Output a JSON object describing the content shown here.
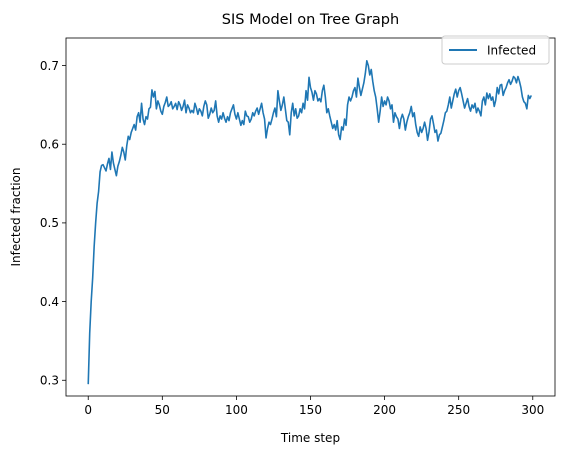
{
  "chart_data": {
    "type": "line",
    "title": "SIS Model on Tree Graph",
    "xlabel": "Time step",
    "ylabel": "Infected fraction",
    "xlim": [
      -15,
      315
    ],
    "ylim": [
      0.28,
      0.735
    ],
    "xticks": [
      0,
      50,
      100,
      150,
      200,
      250,
      300
    ],
    "yticks": [
      0.3,
      0.4,
      0.5,
      0.6,
      0.7
    ],
    "grid": false,
    "legend_position": "top-right",
    "series": [
      {
        "name": "Infected",
        "color": "#1f77b4",
        "points": [
          [
            0,
            0.295
          ],
          [
            1,
            0.36
          ],
          [
            2,
            0.4
          ],
          [
            3,
            0.43
          ],
          [
            4,
            0.47
          ],
          [
            5,
            0.5
          ],
          [
            6,
            0.525
          ],
          [
            7,
            0.54
          ],
          [
            8,
            0.565
          ],
          [
            9,
            0.573
          ],
          [
            10,
            0.574
          ],
          [
            11,
            0.57
          ],
          [
            12,
            0.566
          ],
          [
            13,
            0.575
          ],
          [
            14,
            0.582
          ],
          [
            15,
            0.568
          ],
          [
            16,
            0.59
          ],
          [
            17,
            0.576
          ],
          [
            18,
            0.568
          ],
          [
            19,
            0.56
          ],
          [
            20,
            0.572
          ],
          [
            21,
            0.578
          ],
          [
            22,
            0.586
          ],
          [
            23,
            0.596
          ],
          [
            24,
            0.59
          ],
          [
            25,
            0.58
          ],
          [
            26,
            0.598
          ],
          [
            27,
            0.61
          ],
          [
            28,
            0.606
          ],
          [
            29,
            0.615
          ],
          [
            30,
            0.62
          ],
          [
            31,
            0.625
          ],
          [
            32,
            0.618
          ],
          [
            33,
            0.635
          ],
          [
            34,
            0.64
          ],
          [
            35,
            0.628
          ],
          [
            36,
            0.652
          ],
          [
            37,
            0.632
          ],
          [
            38,
            0.625
          ],
          [
            39,
            0.635
          ],
          [
            40,
            0.632
          ],
          [
            41,
            0.645
          ],
          [
            42,
            0.647
          ],
          [
            43,
            0.669
          ],
          [
            44,
            0.66
          ],
          [
            45,
            0.667
          ],
          [
            46,
            0.645
          ],
          [
            47,
            0.655
          ],
          [
            48,
            0.65
          ],
          [
            49,
            0.642
          ],
          [
            50,
            0.638
          ],
          [
            51,
            0.648
          ],
          [
            52,
            0.653
          ],
          [
            53,
            0.66
          ],
          [
            54,
            0.648
          ],
          [
            55,
            0.65
          ],
          [
            56,
            0.654
          ],
          [
            57,
            0.645
          ],
          [
            58,
            0.648
          ],
          [
            59,
            0.652
          ],
          [
            60,
            0.644
          ],
          [
            61,
            0.654
          ],
          [
            62,
            0.65
          ],
          [
            63,
            0.643
          ],
          [
            64,
            0.648
          ],
          [
            65,
            0.656
          ],
          [
            66,
            0.64
          ],
          [
            67,
            0.65
          ],
          [
            68,
            0.646
          ],
          [
            69,
            0.64
          ],
          [
            70,
            0.643
          ],
          [
            71,
            0.64
          ],
          [
            72,
            0.652
          ],
          [
            73,
            0.646
          ],
          [
            74,
            0.638
          ],
          [
            75,
            0.645
          ],
          [
            76,
            0.642
          ],
          [
            77,
            0.636
          ],
          [
            78,
            0.648
          ],
          [
            79,
            0.655
          ],
          [
            80,
            0.65
          ],
          [
            81,
            0.633
          ],
          [
            82,
            0.638
          ],
          [
            83,
            0.646
          ],
          [
            84,
            0.64
          ],
          [
            85,
            0.643
          ],
          [
            86,
            0.655
          ],
          [
            87,
            0.636
          ],
          [
            88,
            0.628
          ],
          [
            89,
            0.636
          ],
          [
            90,
            0.632
          ],
          [
            91,
            0.64
          ],
          [
            92,
            0.633
          ],
          [
            93,
            0.628
          ],
          [
            94,
            0.635
          ],
          [
            95,
            0.63
          ],
          [
            96,
            0.64
          ],
          [
            97,
            0.645
          ],
          [
            98,
            0.65
          ],
          [
            99,
            0.638
          ],
          [
            100,
            0.632
          ],
          [
            101,
            0.64
          ],
          [
            102,
            0.632
          ],
          [
            103,
            0.624
          ],
          [
            104,
            0.63
          ],
          [
            105,
            0.625
          ],
          [
            106,
            0.642
          ],
          [
            107,
            0.636
          ],
          [
            108,
            0.635
          ],
          [
            109,
            0.628
          ],
          [
            110,
            0.632
          ],
          [
            111,
            0.64
          ],
          [
            112,
            0.636
          ],
          [
            113,
            0.642
          ],
          [
            114,
            0.646
          ],
          [
            115,
            0.638
          ],
          [
            116,
            0.645
          ],
          [
            117,
            0.652
          ],
          [
            118,
            0.64
          ],
          [
            119,
            0.632
          ],
          [
            120,
            0.608
          ],
          [
            121,
            0.62
          ],
          [
            122,
            0.628
          ],
          [
            123,
            0.625
          ],
          [
            124,
            0.632
          ],
          [
            125,
            0.64
          ],
          [
            126,
            0.646
          ],
          [
            127,
            0.635
          ],
          [
            128,
            0.668
          ],
          [
            129,
            0.655
          ],
          [
            130,
            0.643
          ],
          [
            131,
            0.65
          ],
          [
            132,
            0.66
          ],
          [
            133,
            0.645
          ],
          [
            134,
            0.63
          ],
          [
            135,
            0.628
          ],
          [
            136,
            0.612
          ],
          [
            137,
            0.64
          ],
          [
            138,
            0.652
          ],
          [
            139,
            0.636
          ],
          [
            140,
            0.645
          ],
          [
            141,
            0.633
          ],
          [
            142,
            0.636
          ],
          [
            143,
            0.645
          ],
          [
            144,
            0.64
          ],
          [
            145,
            0.652
          ],
          [
            146,
            0.645
          ],
          [
            147,
            0.668
          ],
          [
            148,
            0.656
          ],
          [
            149,
            0.685
          ],
          [
            150,
            0.672
          ],
          [
            151,
            0.666
          ],
          [
            152,
            0.656
          ],
          [
            153,
            0.668
          ],
          [
            154,
            0.664
          ],
          [
            155,
            0.655
          ],
          [
            156,
            0.658
          ],
          [
            157,
            0.654
          ],
          [
            158,
            0.668
          ],
          [
            159,
            0.675
          ],
          [
            160,
            0.66
          ],
          [
            161,
            0.64
          ],
          [
            162,
            0.645
          ],
          [
            163,
            0.636
          ],
          [
            164,
            0.628
          ],
          [
            165,
            0.62
          ],
          [
            166,
            0.625
          ],
          [
            167,
            0.618
          ],
          [
            168,
            0.63
          ],
          [
            169,
            0.612
          ],
          [
            170,
            0.606
          ],
          [
            171,
            0.622
          ],
          [
            172,
            0.618
          ],
          [
            173,
            0.632
          ],
          [
            174,
            0.624
          ],
          [
            175,
            0.65
          ],
          [
            176,
            0.66
          ],
          [
            177,
            0.655
          ],
          [
            178,
            0.66
          ],
          [
            179,
            0.668
          ],
          [
            180,
            0.672
          ],
          [
            181,
            0.66
          ],
          [
            182,
            0.684
          ],
          [
            183,
            0.672
          ],
          [
            184,
            0.662
          ],
          [
            185,
            0.67
          ],
          [
            186,
            0.678
          ],
          [
            187,
            0.69
          ],
          [
            188,
            0.706
          ],
          [
            189,
            0.7
          ],
          [
            190,
            0.688
          ],
          [
            191,
            0.695
          ],
          [
            192,
            0.68
          ],
          [
            193,
            0.668
          ],
          [
            194,
            0.66
          ],
          [
            195,
            0.645
          ],
          [
            196,
            0.628
          ],
          [
            197,
            0.642
          ],
          [
            198,
            0.66
          ],
          [
            199,
            0.648
          ],
          [
            200,
            0.655
          ],
          [
            201,
            0.65
          ],
          [
            202,
            0.66
          ],
          [
            203,
            0.655
          ],
          [
            204,
            0.645
          ],
          [
            205,
            0.65
          ],
          [
            206,
            0.628
          ],
          [
            207,
            0.64
          ],
          [
            208,
            0.635
          ],
          [
            209,
            0.632
          ],
          [
            210,
            0.62
          ],
          [
            211,
            0.632
          ],
          [
            212,
            0.638
          ],
          [
            213,
            0.632
          ],
          [
            214,
            0.618
          ],
          [
            215,
            0.628
          ],
          [
            216,
            0.635
          ],
          [
            217,
            0.64
          ],
          [
            218,
            0.648
          ],
          [
            219,
            0.635
          ],
          [
            220,
            0.64
          ],
          [
            221,
            0.625
          ],
          [
            222,
            0.615
          ],
          [
            223,
            0.61
          ],
          [
            224,
            0.622
          ],
          [
            225,
            0.615
          ],
          [
            226,
            0.62
          ],
          [
            227,
            0.628
          ],
          [
            228,
            0.62
          ],
          [
            229,
            0.605
          ],
          [
            230,
            0.616
          ],
          [
            231,
            0.632
          ],
          [
            232,
            0.636
          ],
          [
            233,
            0.626
          ],
          [
            234,
            0.615
          ],
          [
            235,
            0.618
          ],
          [
            236,
            0.604
          ],
          [
            237,
            0.612
          ],
          [
            238,
            0.614
          ],
          [
            239,
            0.622
          ],
          [
            240,
            0.63
          ],
          [
            241,
            0.64
          ],
          [
            242,
            0.642
          ],
          [
            243,
            0.65
          ],
          [
            244,
            0.66
          ],
          [
            245,
            0.646
          ],
          [
            246,
            0.655
          ],
          [
            247,
            0.664
          ],
          [
            248,
            0.67
          ],
          [
            249,
            0.66
          ],
          [
            250,
            0.668
          ],
          [
            251,
            0.672
          ],
          [
            252,
            0.664
          ],
          [
            253,
            0.655
          ],
          [
            254,
            0.646
          ],
          [
            255,
            0.652
          ],
          [
            256,
            0.658
          ],
          [
            257,
            0.648
          ],
          [
            258,
            0.642
          ],
          [
            259,
            0.65
          ],
          [
            260,
            0.646
          ],
          [
            261,
            0.652
          ],
          [
            262,
            0.64
          ],
          [
            263,
            0.646
          ],
          [
            264,
            0.642
          ],
          [
            265,
            0.636
          ],
          [
            266,
            0.655
          ],
          [
            267,
            0.66
          ],
          [
            268,
            0.65
          ],
          [
            269,
            0.665
          ],
          [
            270,
            0.658
          ],
          [
            271,
            0.664
          ],
          [
            272,
            0.656
          ],
          [
            273,
            0.66
          ],
          [
            274,
            0.648
          ],
          [
            275,
            0.656
          ],
          [
            276,
            0.672
          ],
          [
            277,
            0.664
          ],
          [
            278,
            0.675
          ],
          [
            279,
            0.676
          ],
          [
            280,
            0.662
          ],
          [
            281,
            0.668
          ],
          [
            282,
            0.672
          ],
          [
            283,
            0.678
          ],
          [
            284,
            0.682
          ],
          [
            285,
            0.676
          ],
          [
            286,
            0.68
          ],
          [
            287,
            0.686
          ],
          [
            288,
            0.684
          ],
          [
            289,
            0.678
          ],
          [
            290,
            0.686
          ],
          [
            291,
            0.68
          ],
          [
            292,
            0.672
          ],
          [
            293,
            0.66
          ],
          [
            294,
            0.654
          ],
          [
            295,
            0.652
          ],
          [
            296,
            0.645
          ],
          [
            297,
            0.662
          ],
          [
            298,
            0.658
          ],
          [
            299,
            0.662
          ]
        ]
      }
    ]
  }
}
